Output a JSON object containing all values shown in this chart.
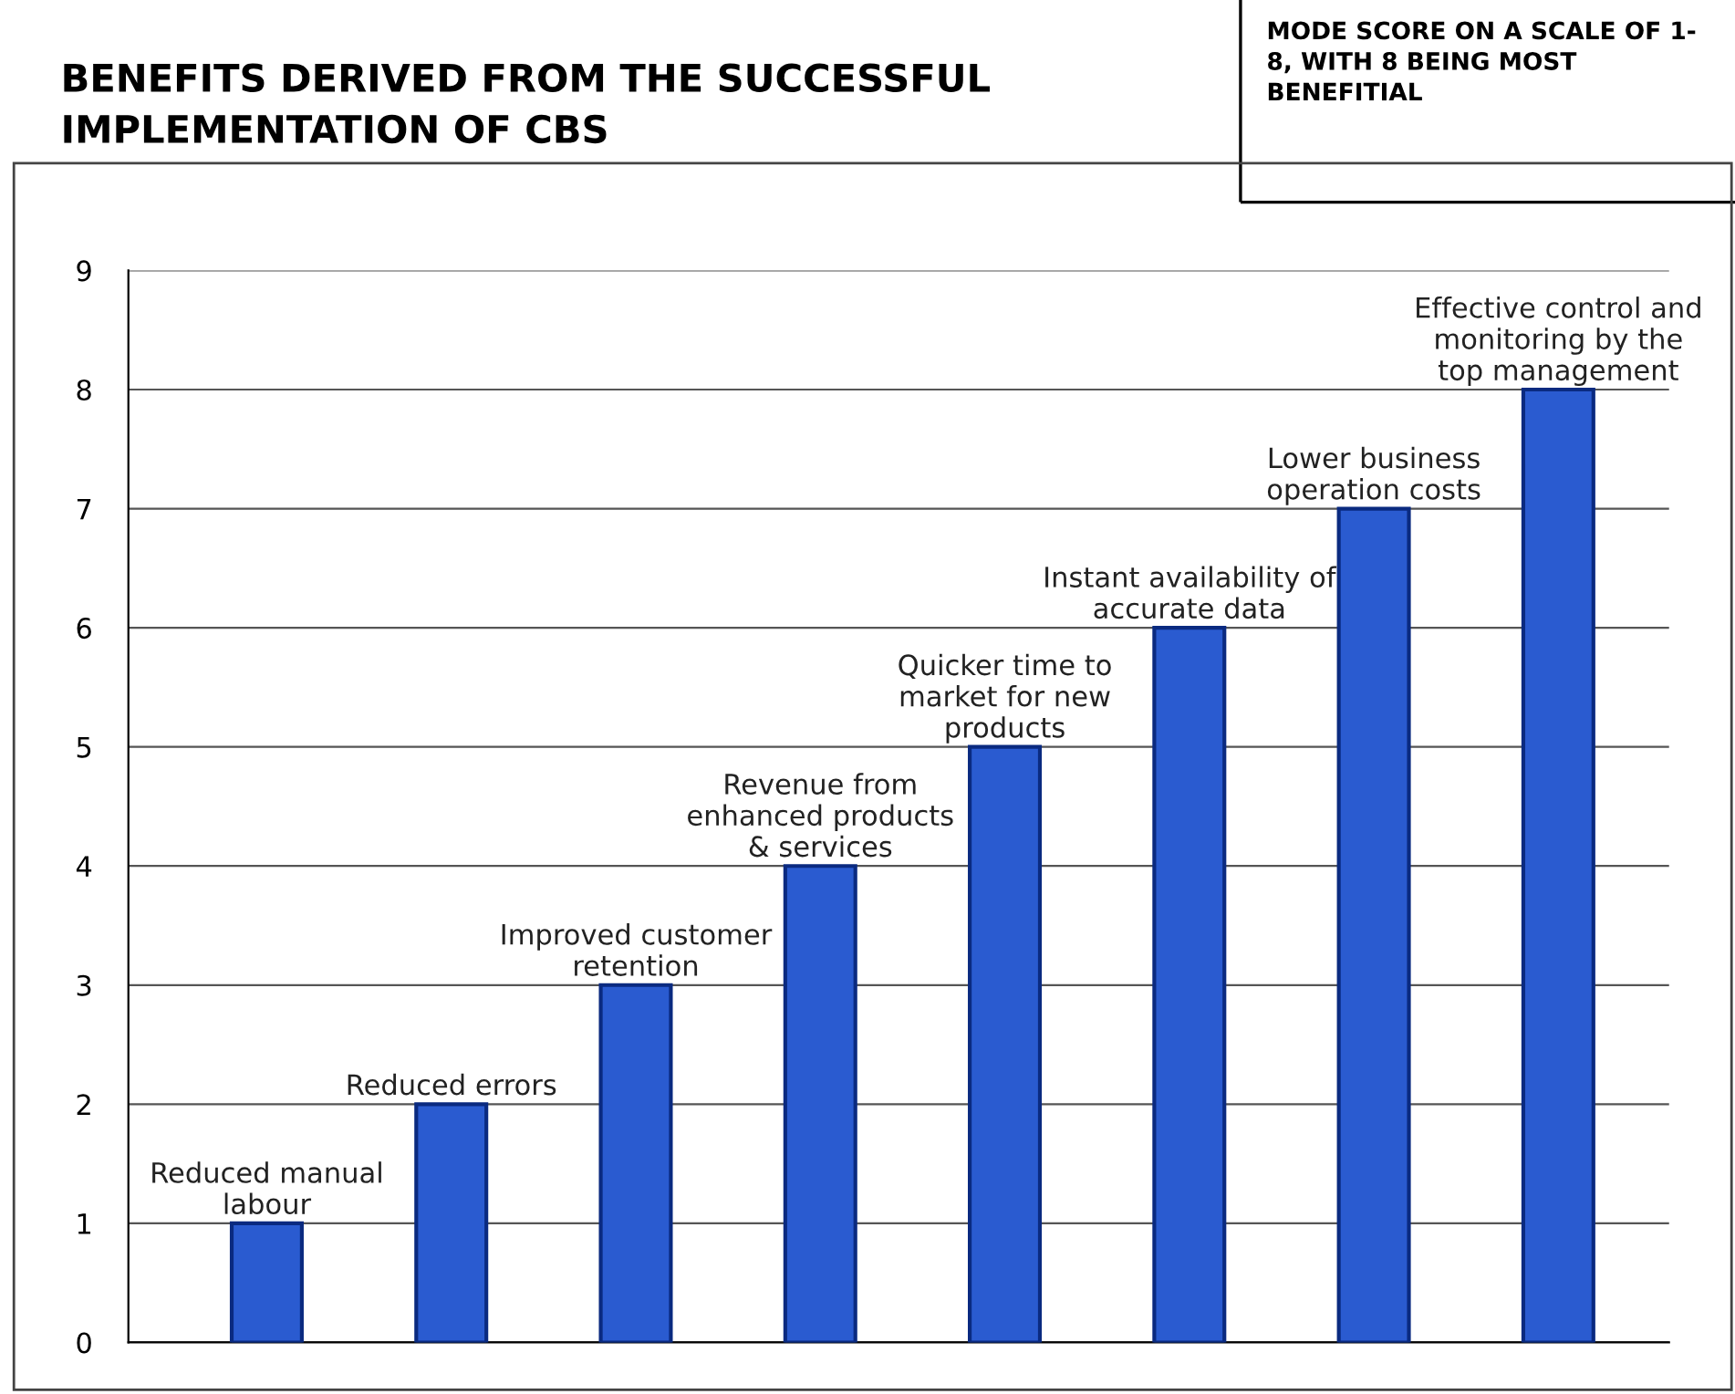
{
  "chart_data": {
    "type": "bar",
    "title": "BENEFITS DERIVED FROM THE SUCCESSFUL\nIMPLEMENTATION OF CBS",
    "annotations": [
      "MODE SCORE ON A SCALE OF 1-\n8, WITH 8 BEING MOST\nBENEFITIAL"
    ],
    "categories": [
      "Reduced manual\nlabour",
      "Reduced errors",
      "Improved customer\nretention",
      "Revenue from\nenhanced products\n& services",
      "Quicker time to\nmarket for new\nproducts",
      "Instant availability of\naccurate data",
      "Lower business\noperation costs",
      "Effective control and\nmonitoring by the\ntop management"
    ],
    "values": [
      1,
      2,
      3,
      4,
      5,
      6,
      7,
      8
    ],
    "color": "#2a5bd0",
    "ylim": [
      0,
      9
    ],
    "yticks": [
      0,
      1,
      2,
      3,
      4,
      5,
      6,
      7,
      8,
      9
    ],
    "grid": "y"
  }
}
